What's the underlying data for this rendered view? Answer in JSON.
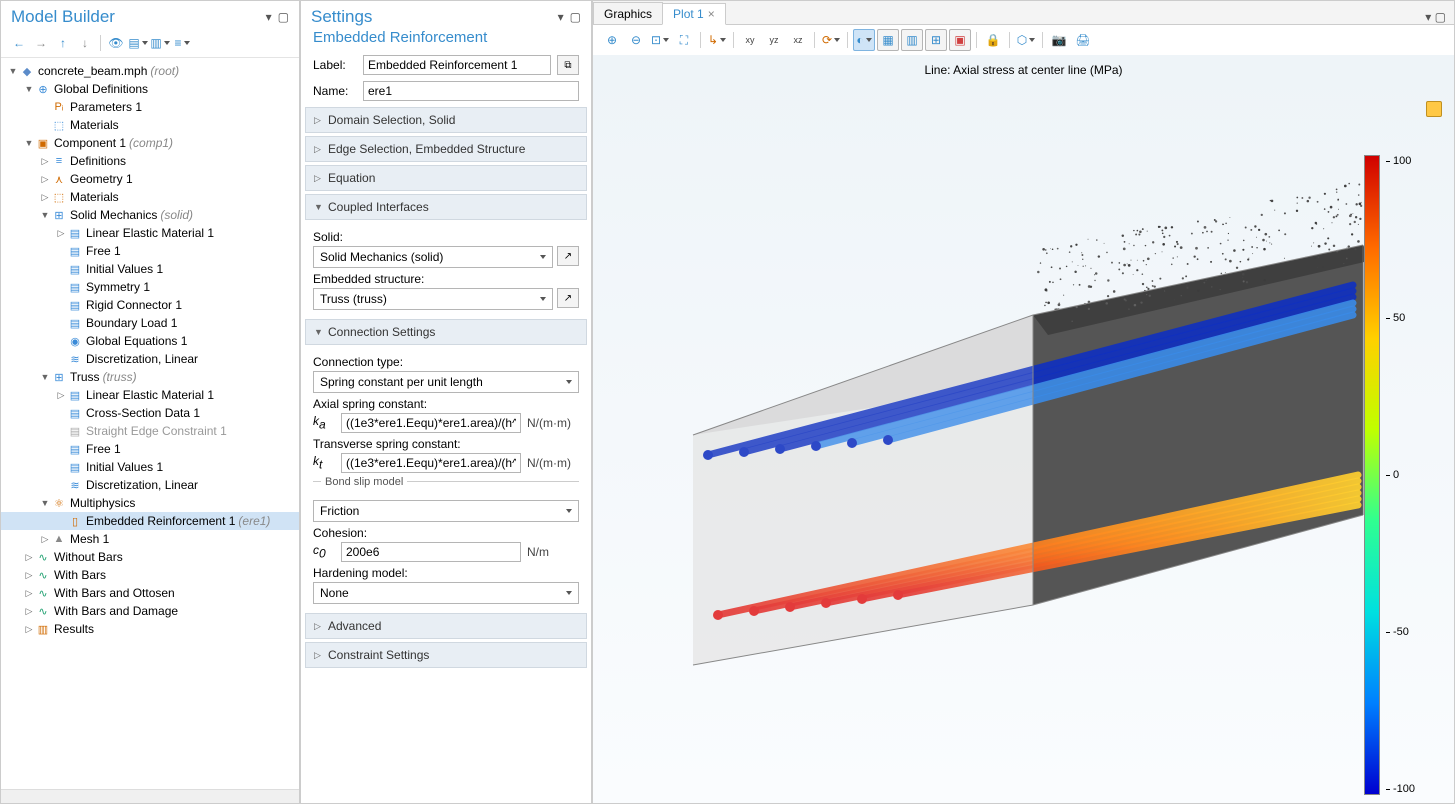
{
  "modelBuilder": {
    "title": "Model Builder",
    "tree": [
      {
        "d": 0,
        "tw": "▼",
        "ic": "◆",
        "c": "#5b8bc9",
        "t": "concrete_beam.mph",
        "tag": "(root)"
      },
      {
        "d": 1,
        "tw": "▼",
        "ic": "⊕",
        "c": "#3a8bd8",
        "t": "Global Definitions"
      },
      {
        "d": 2,
        "tw": "",
        "ic": "Pᵢ",
        "c": "#d06a00",
        "t": "Parameters 1"
      },
      {
        "d": 2,
        "tw": "",
        "ic": "⬚",
        "c": "#3a8bd8",
        "t": "Materials"
      },
      {
        "d": 1,
        "tw": "▼",
        "ic": "▣",
        "c": "#d06a00",
        "t": "Component 1",
        "tag": "(comp1)"
      },
      {
        "d": 2,
        "tw": "▷",
        "ic": "≡",
        "c": "#3a8bd8",
        "t": "Definitions"
      },
      {
        "d": 2,
        "tw": "▷",
        "ic": "⋏",
        "c": "#d06a00",
        "t": "Geometry 1"
      },
      {
        "d": 2,
        "tw": "▷",
        "ic": "⬚",
        "c": "#d06a00",
        "t": "Materials"
      },
      {
        "d": 2,
        "tw": "▼",
        "ic": "⊞",
        "c": "#3a8bd8",
        "t": "Solid Mechanics",
        "tag": "(solid)"
      },
      {
        "d": 3,
        "tw": "▷",
        "ic": "▤",
        "c": "#3a8bd8",
        "t": "Linear Elastic Material 1"
      },
      {
        "d": 3,
        "tw": "",
        "ic": "▤",
        "c": "#3a8bd8",
        "t": "Free 1"
      },
      {
        "d": 3,
        "tw": "",
        "ic": "▤",
        "c": "#3a8bd8",
        "t": "Initial Values 1"
      },
      {
        "d": 3,
        "tw": "",
        "ic": "▤",
        "c": "#3a8bd8",
        "t": "Symmetry 1"
      },
      {
        "d": 3,
        "tw": "",
        "ic": "▤",
        "c": "#3a8bd8",
        "t": "Rigid Connector 1"
      },
      {
        "d": 3,
        "tw": "",
        "ic": "▤",
        "c": "#3a8bd8",
        "t": "Boundary Load 1"
      },
      {
        "d": 3,
        "tw": "",
        "ic": "◉",
        "c": "#3a8bd8",
        "t": "Global Equations 1"
      },
      {
        "d": 3,
        "tw": "",
        "ic": "≋",
        "c": "#3a8bd8",
        "t": "Discretization, Linear"
      },
      {
        "d": 2,
        "tw": "▼",
        "ic": "⊞",
        "c": "#3a8bd8",
        "t": "Truss",
        "tag": "(truss)"
      },
      {
        "d": 3,
        "tw": "▷",
        "ic": "▤",
        "c": "#3a8bd8",
        "t": "Linear Elastic Material 1"
      },
      {
        "d": 3,
        "tw": "",
        "ic": "▤",
        "c": "#3a8bd8",
        "t": "Cross-Section Data 1"
      },
      {
        "d": 3,
        "tw": "",
        "ic": "▤",
        "c": "#aaaaaa",
        "t": "Straight Edge Constraint 1",
        "dim": true
      },
      {
        "d": 3,
        "tw": "",
        "ic": "▤",
        "c": "#3a8bd8",
        "t": "Free 1"
      },
      {
        "d": 3,
        "tw": "",
        "ic": "▤",
        "c": "#3a8bd8",
        "t": "Initial Values 1"
      },
      {
        "d": 3,
        "tw": "",
        "ic": "≋",
        "c": "#3a8bd8",
        "t": "Discretization, Linear"
      },
      {
        "d": 2,
        "tw": "▼",
        "ic": "⚛",
        "c": "#d06a00",
        "t": "Multiphysics"
      },
      {
        "d": 3,
        "tw": "",
        "ic": "▯",
        "c": "#d06a00",
        "t": "Embedded Reinforcement 1",
        "tag": "(ere1)",
        "sel": true
      },
      {
        "d": 2,
        "tw": "▷",
        "ic": "▲",
        "c": "#888888",
        "t": "Mesh 1"
      },
      {
        "d": 1,
        "tw": "▷",
        "ic": "∿",
        "c": "#20a070",
        "t": "Without Bars"
      },
      {
        "d": 1,
        "tw": "▷",
        "ic": "∿",
        "c": "#20a070",
        "t": "With Bars"
      },
      {
        "d": 1,
        "tw": "▷",
        "ic": "∿",
        "c": "#20a070",
        "t": "With Bars and Ottosen"
      },
      {
        "d": 1,
        "tw": "▷",
        "ic": "∿",
        "c": "#20a070",
        "t": "With Bars and Damage"
      },
      {
        "d": 1,
        "tw": "▷",
        "ic": "▥",
        "c": "#d06a00",
        "t": "Results"
      }
    ]
  },
  "settings": {
    "title": "Settings",
    "subtitle": "Embedded Reinforcement",
    "label": {
      "caption": "Label:",
      "value": "Embedded Reinforcement 1"
    },
    "name": {
      "caption": "Name:",
      "value": "ere1"
    },
    "sections": [
      {
        "open": false,
        "title": "Domain Selection, Solid"
      },
      {
        "open": false,
        "title": "Edge Selection, Embedded Structure"
      },
      {
        "open": false,
        "title": "Equation"
      }
    ],
    "coupled": {
      "title": "Coupled Interfaces",
      "solidLbl": "Solid:",
      "solidVal": "Solid Mechanics (solid)",
      "embLbl": "Embedded structure:",
      "embVal": "Truss (truss)"
    },
    "conn": {
      "title": "Connection Settings",
      "typeLbl": "Connection type:",
      "typeVal": "Spring constant per unit length",
      "axLbl": "Axial spring constant:",
      "axSym": "k",
      "axSub": "a",
      "axVal": "((1e3*ere1.Eequ)*ere1.area)/(h^2)",
      "axUnit": "N/(m·m)",
      "trLbl": "Transverse spring constant:",
      "trSym": "k",
      "trSub": "t",
      "trVal": "((1e3*ere1.Eequ)*ere1.area)/(h^2)",
      "trUnit": "N/(m·m)",
      "bondTitle": "Bond slip model",
      "bondVal": "Friction",
      "cohLbl": "Cohesion:",
      "cohSym": "c",
      "cohSub": "0",
      "cohVal": "200e6",
      "cohUnit": "N/m",
      "hardLbl": "Hardening model:",
      "hardVal": "None"
    },
    "more": [
      {
        "open": false,
        "title": "Advanced"
      },
      {
        "open": false,
        "title": "Constraint Settings"
      }
    ]
  },
  "graphics": {
    "tabs": [
      {
        "t": "Graphics",
        "active": false
      },
      {
        "t": "Plot 1",
        "active": true,
        "close": true
      }
    ],
    "plotTitle": "Line: Axial stress at center line (MPa)",
    "colorbar": {
      "min": -100,
      "max": 133,
      "ticks": [
        "100",
        "50",
        "0",
        "-50",
        "-100"
      ]
    },
    "scene": {
      "topRods": {
        "count": 6,
        "color1": "#1030c0",
        "color2": "#3a8be8"
      },
      "botRods": {
        "count": 6,
        "color1": "#ff8a20",
        "color2": "#e02020"
      },
      "block": {
        "fill": "#d9d9d9",
        "top": "#4a4a4a",
        "side": "#555555"
      }
    }
  }
}
